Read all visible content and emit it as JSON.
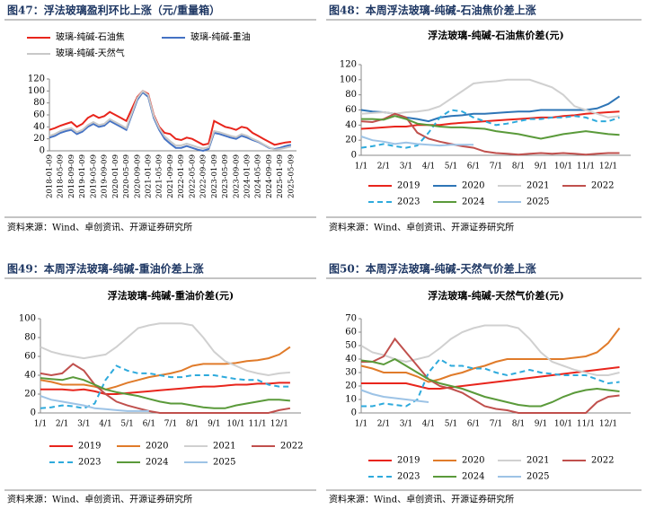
{
  "panels": [
    {
      "heading": "图47：浮法玻璃盈利环比上涨（元/重量箱）",
      "source": "资料来源：Wind、卓创资讯、开源证券研究所"
    },
    {
      "heading": "图48：本周浮法玻璃-纯碱-石油焦价差上涨",
      "source": "资料来源：Wind、卓创资讯、开源证券研究所"
    },
    {
      "heading": "图49：本周浮法玻璃-纯碱-重油价差上涨",
      "source": "资料来源：Wind、卓创资讯、开源证券研究所"
    },
    {
      "heading": "图50：本周浮法玻璃-纯碱-天然气价差上涨",
      "source": "资料来源：Wind、卓创资讯、开源证券研究所"
    }
  ],
  "chart_data": [
    {
      "type": "line",
      "categories": [
        "2018-01-09",
        null,
        "2018-05-09",
        null,
        "2018-09-09",
        null,
        "2019-01-09",
        null,
        "2019-05-09",
        null,
        "2019-09-09",
        null,
        "2020-01-09",
        null,
        "2020-05-09",
        null,
        "2020-09-09",
        null,
        "2021-01-09",
        null,
        "2021-05-09",
        null,
        "2021-09-09",
        null,
        "2022-01-09",
        null,
        "2022-05-09",
        null,
        "2022-09-09",
        null,
        "2023-01-09",
        null,
        "2023-05-09",
        null,
        "2023-09-09",
        null,
        "2024-01-09",
        null,
        "2024-05-09",
        null,
        "2024-09-09",
        null,
        "2025-01-09",
        null,
        "2025-05-09"
      ],
      "ylim": [
        0,
        120
      ],
      "yticks": [
        0,
        20,
        40,
        60,
        80,
        100,
        120
      ],
      "series": [
        {
          "name": "玻璃-纯碱-石油焦",
          "color": "#e8251c",
          "values": [
            35,
            38,
            42,
            45,
            48,
            40,
            45,
            55,
            60,
            55,
            58,
            65,
            60,
            55,
            50,
            70,
            90,
            100,
            95,
            60,
            40,
            30,
            28,
            20,
            18,
            22,
            20,
            15,
            10,
            12,
            50,
            45,
            40,
            38,
            35,
            40,
            38,
            30,
            25,
            20,
            15,
            10,
            12,
            14,
            15
          ]
        },
        {
          "name": "玻璃-纯碱-重油",
          "color": "#4472c4",
          "values": [
            22,
            25,
            30,
            33,
            35,
            28,
            32,
            40,
            45,
            40,
            42,
            50,
            45,
            40,
            35,
            60,
            85,
            98,
            90,
            55,
            35,
            20,
            12,
            5,
            5,
            8,
            5,
            2,
            0,
            3,
            30,
            28,
            25,
            22,
            20,
            25,
            22,
            18,
            15,
            10,
            5,
            3,
            5,
            8,
            10
          ]
        },
        {
          "name": "玻璃-纯碱-天然气",
          "color": "#c8c8c8",
          "values": [
            25,
            28,
            33,
            36,
            38,
            31,
            35,
            43,
            48,
            43,
            45,
            53,
            48,
            43,
            38,
            63,
            88,
            100,
            93,
            58,
            38,
            24,
            16,
            9,
            9,
            12,
            9,
            6,
            4,
            6,
            33,
            31,
            28,
            25,
            23,
            28,
            25,
            20,
            16,
            11,
            6,
            2,
            3,
            5,
            7
          ]
        }
      ]
    },
    {
      "type": "line",
      "title": "浮法玻璃-纯碱-石油焦价差(元)",
      "categories": [
        "1/1",
        null,
        "2/1",
        null,
        "3/1",
        null,
        "4/1",
        null,
        "5/1",
        null,
        "6/1",
        null,
        "7/1",
        null,
        "8/1",
        null,
        "9/1",
        null,
        "10/1",
        null,
        "11/1",
        null,
        "12/1",
        null
      ],
      "ylim": [
        0,
        120
      ],
      "yticks": [
        0,
        20,
        40,
        60,
        80,
        100,
        120
      ],
      "series": [
        {
          "name": "2019",
          "color": "#e8251c",
          "values": [
            35,
            36,
            37,
            38,
            38,
            40,
            40,
            40,
            42,
            43,
            44,
            45,
            46,
            47,
            48,
            49,
            50,
            50,
            52,
            53,
            55,
            56,
            57,
            58
          ]
        },
        {
          "name": "2020",
          "color": "#2e75b6",
          "values": [
            60,
            58,
            57,
            55,
            50,
            48,
            45,
            50,
            52,
            53,
            55,
            55,
            56,
            57,
            58,
            58,
            60,
            60,
            60,
            60,
            60,
            62,
            68,
            78
          ]
        },
        {
          "name": "2021",
          "color": "#d0d0d0",
          "values": [
            55,
            56,
            57,
            55,
            57,
            58,
            60,
            65,
            75,
            85,
            95,
            97,
            98,
            100,
            100,
            100,
            95,
            90,
            80,
            65,
            60,
            55,
            50,
            52
          ]
        },
        {
          "name": "2022",
          "color": "#c0504d",
          "values": [
            45,
            44,
            48,
            55,
            50,
            30,
            22,
            18,
            15,
            12,
            10,
            5,
            3,
            2,
            1,
            2,
            3,
            2,
            3,
            2,
            1,
            2,
            3,
            3
          ]
        },
        {
          "name": "2023",
          "color": "#2eaadc",
          "dash": true,
          "values": [
            10,
            12,
            15,
            12,
            10,
            13,
            30,
            50,
            60,
            58,
            50,
            45,
            40,
            42,
            45,
            48,
            48,
            50,
            50,
            52,
            50,
            45,
            45,
            50
          ]
        },
        {
          "name": "2024",
          "color": "#5a9a3a",
          "values": [
            48,
            48,
            47,
            52,
            48,
            42,
            40,
            38,
            37,
            37,
            36,
            35,
            32,
            30,
            28,
            25,
            22,
            25,
            28,
            30,
            32,
            30,
            28,
            27
          ]
        },
        {
          "name": "2025",
          "color": "#9dc3e6",
          "values": [
            25,
            20,
            18,
            15,
            17,
            15,
            14,
            13,
            14,
            14,
            14,
            null,
            null,
            null,
            null,
            null,
            null,
            null,
            null,
            null,
            null,
            null,
            null,
            null
          ]
        }
      ]
    },
    {
      "type": "line",
      "title": "浮法玻璃-纯碱-重油价差(元)",
      "categories": [
        "1/1",
        null,
        "2/1",
        null,
        "3/1",
        null,
        "4/1",
        null,
        "5/1",
        null,
        "6/1",
        null,
        "7/1",
        null,
        "8/1",
        null,
        "9/1",
        null,
        "10/1",
        null,
        "11/1",
        null,
        "12/1",
        null
      ],
      "ylim": [
        0,
        100
      ],
      "yticks": [
        0,
        20,
        40,
        60,
        80,
        100
      ],
      "series": [
        {
          "name": "2019",
          "color": "#e8251c",
          "values": [
            25,
            25,
            25,
            24,
            25,
            23,
            20,
            20,
            21,
            22,
            23,
            24,
            25,
            26,
            27,
            28,
            28,
            29,
            30,
            30,
            31,
            31,
            32,
            32
          ]
        },
        {
          "name": "2020",
          "color": "#e07b2a",
          "values": [
            35,
            33,
            30,
            30,
            30,
            28,
            25,
            28,
            32,
            35,
            38,
            40,
            42,
            45,
            50,
            52,
            52,
            52,
            53,
            55,
            56,
            58,
            62,
            70
          ]
        },
        {
          "name": "2021",
          "color": "#d0d0d0",
          "values": [
            70,
            65,
            62,
            60,
            58,
            60,
            62,
            70,
            80,
            90,
            93,
            95,
            95,
            95,
            93,
            80,
            65,
            55,
            50,
            45,
            42,
            40,
            42,
            43
          ]
        },
        {
          "name": "2022",
          "color": "#c0504d",
          "values": [
            42,
            40,
            42,
            52,
            45,
            30,
            20,
            12,
            8,
            5,
            2,
            0,
            0,
            0,
            0,
            0,
            0,
            0,
            0,
            0,
            0,
            0,
            3,
            5
          ]
        },
        {
          "name": "2023",
          "color": "#2eaadc",
          "dash": true,
          "values": [
            5,
            6,
            8,
            7,
            5,
            10,
            35,
            50,
            45,
            42,
            42,
            40,
            38,
            38,
            40,
            40,
            40,
            38,
            36,
            35,
            35,
            30,
            28,
            28
          ]
        },
        {
          "name": "2024",
          "color": "#5a9a3a",
          "values": [
            37,
            36,
            35,
            38,
            35,
            30,
            25,
            22,
            20,
            18,
            15,
            12,
            10,
            10,
            8,
            6,
            5,
            5,
            8,
            10,
            12,
            14,
            14,
            13
          ]
        },
        {
          "name": "2025",
          "color": "#9dc3e6",
          "values": [
            18,
            14,
            12,
            10,
            8,
            5,
            4,
            3,
            2,
            2,
            2,
            null,
            null,
            null,
            null,
            null,
            null,
            null,
            null,
            null,
            null,
            null,
            null,
            null
          ]
        }
      ]
    },
    {
      "type": "line",
      "title": "浮法玻璃-纯碱-天然气价差(元)",
      "categories": [
        "1/1",
        null,
        "2/1",
        null,
        "3/1",
        null,
        "4/1",
        null,
        "5/1",
        null,
        "6/1",
        null,
        "7/1",
        null,
        "8/1",
        null,
        "9/1",
        null,
        "10/1",
        null,
        "11/1",
        null,
        "12/1",
        null
      ],
      "ylim": [
        0,
        70
      ],
      "yticks": [
        0,
        10,
        20,
        30,
        40,
        50,
        60,
        70
      ],
      "series": [
        {
          "name": "2019",
          "color": "#e8251c",
          "values": [
            22,
            22,
            22,
            22,
            22,
            20,
            18,
            18,
            19,
            20,
            21,
            22,
            23,
            24,
            25,
            26,
            27,
            28,
            29,
            30,
            31,
            32,
            33,
            34
          ]
        },
        {
          "name": "2020",
          "color": "#e07b2a",
          "values": [
            35,
            33,
            30,
            30,
            30,
            27,
            23,
            25,
            28,
            30,
            33,
            35,
            38,
            40,
            40,
            40,
            40,
            40,
            40,
            41,
            42,
            45,
            52,
            63
          ]
        },
        {
          "name": "2021",
          "color": "#d0d0d0",
          "values": [
            50,
            45,
            43,
            40,
            38,
            40,
            42,
            48,
            55,
            60,
            63,
            65,
            65,
            65,
            63,
            55,
            45,
            38,
            35,
            32,
            30,
            28,
            28,
            30
          ]
        },
        {
          "name": "2022",
          "color": "#c0504d",
          "values": [
            38,
            38,
            42,
            55,
            45,
            35,
            25,
            20,
            18,
            15,
            10,
            5,
            3,
            2,
            0,
            0,
            0,
            0,
            0,
            0,
            0,
            8,
            12,
            13
          ]
        },
        {
          "name": "2023",
          "color": "#2eaadc",
          "dash": true,
          "values": [
            5,
            5,
            7,
            6,
            5,
            10,
            30,
            40,
            35,
            35,
            33,
            33,
            30,
            28,
            30,
            32,
            30,
            29,
            28,
            28,
            28,
            25,
            22,
            23
          ]
        },
        {
          "name": "2024",
          "color": "#5a9a3a",
          "values": [
            39,
            38,
            36,
            40,
            35,
            30,
            25,
            22,
            20,
            18,
            15,
            12,
            10,
            8,
            6,
            5,
            5,
            8,
            12,
            15,
            17,
            18,
            17,
            16
          ]
        },
        {
          "name": "2025",
          "color": "#9dc3e6",
          "values": [
            17,
            14,
            12,
            11,
            10,
            9,
            8,
            null,
            null,
            null,
            null,
            null,
            null,
            null,
            null,
            null,
            null,
            null,
            null,
            null,
            null,
            null,
            null,
            null
          ]
        }
      ]
    }
  ]
}
